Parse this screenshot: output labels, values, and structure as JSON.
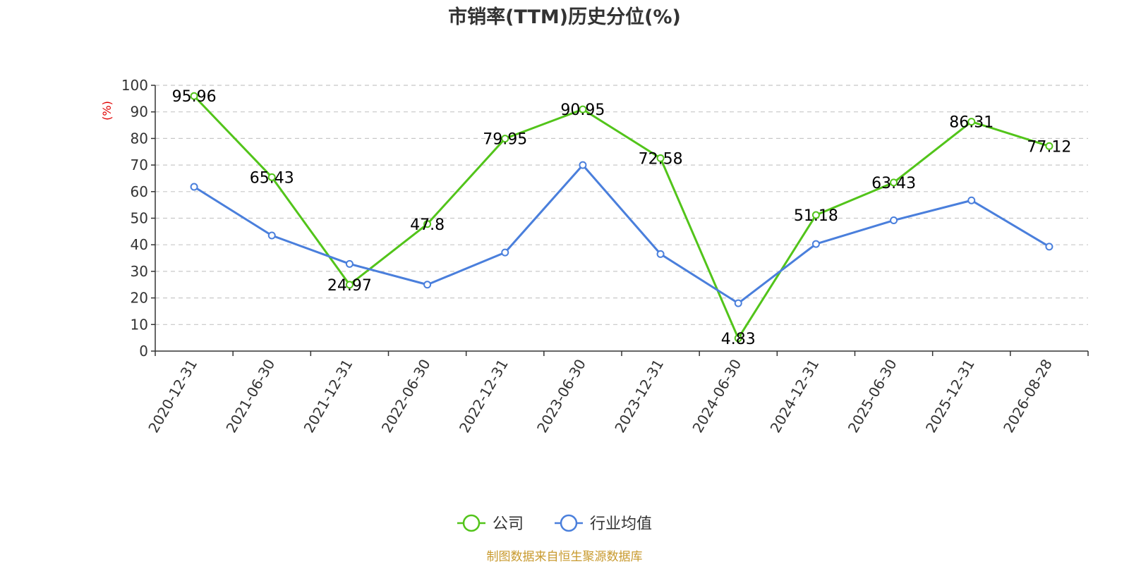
{
  "chart_data": {
    "type": "line",
    "title": "市销率(TTM)历史分位(%)",
    "ylabel": "(%)",
    "xlabel": "",
    "ylim": [
      0,
      100
    ],
    "y_ticks": [
      0,
      10,
      20,
      30,
      40,
      50,
      60,
      70,
      80,
      90,
      100
    ],
    "categories": [
      "2020-12-31",
      "2021-06-30",
      "2021-12-31",
      "2022-06-30",
      "2022-12-31",
      "2023-06-30",
      "2023-12-31",
      "2024-06-30",
      "2024-12-31",
      "2025-06-30",
      "2025-12-31",
      "2026-08-28"
    ],
    "series": [
      {
        "name": "公司",
        "color": "#52c41a",
        "values": [
          95.96,
          65.43,
          24.97,
          47.8,
          79.95,
          90.95,
          72.58,
          4.83,
          51.18,
          63.43,
          86.31,
          77.12
        ],
        "labels": [
          "95.96",
          "65.43",
          "24.97",
          "47.8",
          "79.95",
          "90.95",
          "72.58",
          "4.83",
          "51.18",
          "63.43",
          "86.31",
          "77.12"
        ]
      },
      {
        "name": "行业均值",
        "color": "#4a7fdc",
        "values": [
          61.8,
          43.5,
          32.8,
          25,
          37.1,
          70,
          36.5,
          18,
          40.3,
          49.2,
          56.7,
          39.3
        ]
      }
    ],
    "grid": true,
    "legend_position": "bottom-center"
  },
  "source_note": "制图数据来自恒生聚源数据库"
}
